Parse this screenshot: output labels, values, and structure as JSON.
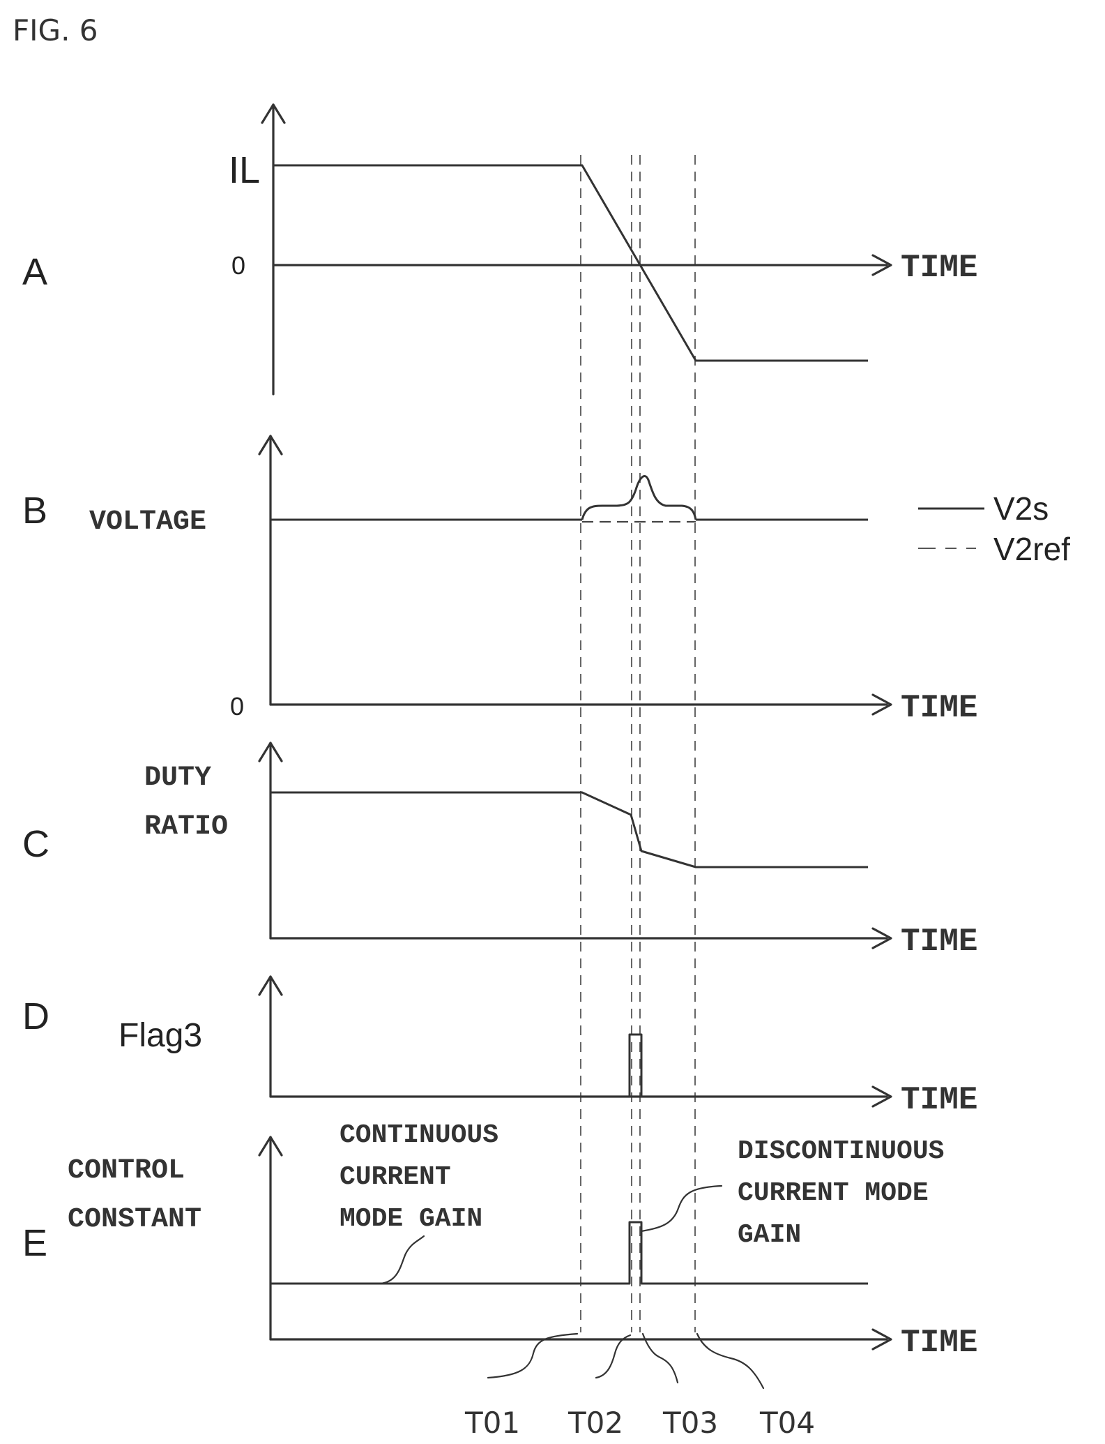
{
  "figure_label": "FIG. 6",
  "time_label": "TIME",
  "zero_label": "0",
  "panels": {
    "A": {
      "letter": "A",
      "ylabel": "IL"
    },
    "B": {
      "letter": "B",
      "ylabel": "VOLTAGE"
    },
    "C": {
      "letter": "C",
      "ylabel_line1": "DUTY",
      "ylabel_line2": "RATIO"
    },
    "D": {
      "letter": "D",
      "ylabel": "Flag3"
    },
    "E": {
      "letter": "E",
      "ylabel_line1": "CONTROL",
      "ylabel_line2": "CONSTANT"
    }
  },
  "legend": {
    "solid": "V2s",
    "dashed": "V2ref"
  },
  "annotations": {
    "continuous": [
      "CONTINUOUS",
      "CURRENT",
      "MODE GAIN"
    ],
    "discontinuous": [
      "DISCONTINUOUS",
      "CURRENT MODE",
      "GAIN"
    ]
  },
  "timepoints": [
    "T01",
    "T02",
    "T03",
    "T04"
  ]
}
